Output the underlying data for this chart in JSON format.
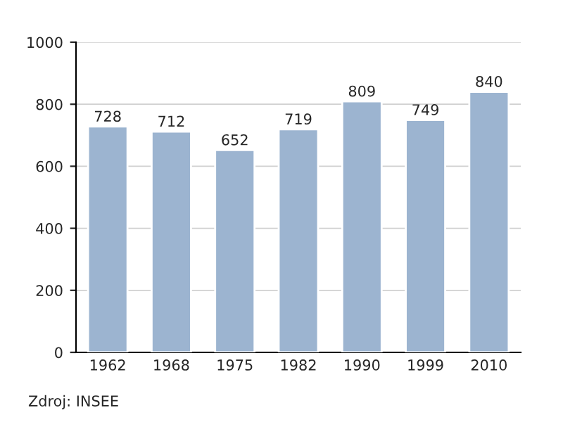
{
  "chart_data": {
    "type": "bar",
    "categories": [
      "1962",
      "1968",
      "1975",
      "1982",
      "1990",
      "1999",
      "2010"
    ],
    "values": [
      728,
      712,
      652,
      719,
      809,
      749,
      840
    ],
    "color": "#9cb4d0",
    "ylim": [
      0,
      1000
    ],
    "yticks": [
      0,
      200,
      400,
      600,
      800,
      1000
    ],
    "grid": "y",
    "data_labels": true,
    "annotations": [
      "Zdroj: INSEE"
    ]
  }
}
